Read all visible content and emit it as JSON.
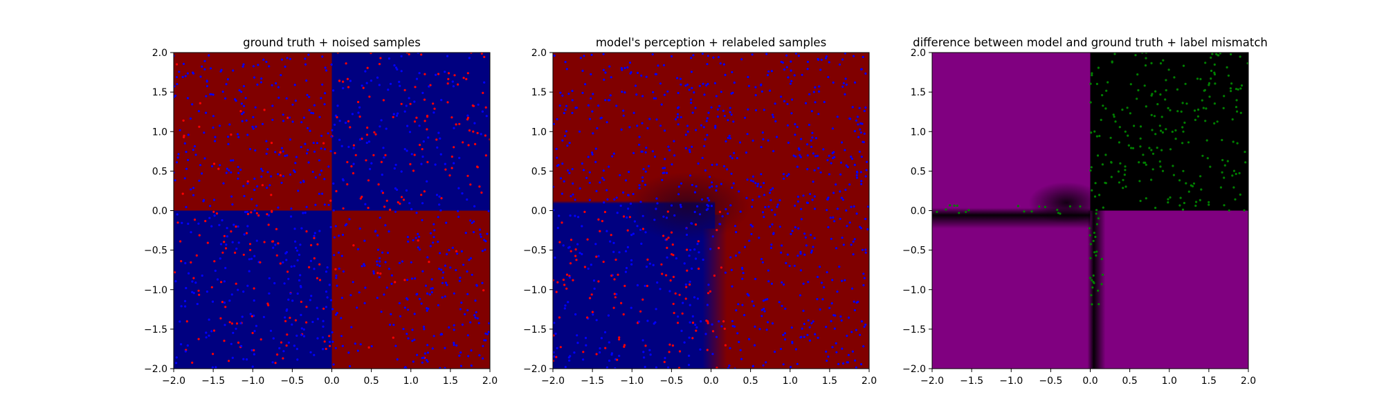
{
  "chart_data": [
    {
      "type": "heatmap",
      "title": "ground truth + noised samples",
      "xlim": [
        -2.0,
        2.0
      ],
      "ylim": [
        -2.0,
        2.0
      ],
      "xticks": [
        "−2.0",
        "−1.5",
        "−1.0",
        "−0.5",
        "0.0",
        "0.5",
        "1.0",
        "1.5",
        "2.0"
      ],
      "yticks": [
        "−2.0",
        "−1.5",
        "−1.0",
        "−0.5",
        "0.0",
        "0.5",
        "1.0",
        "1.5",
        "2.0"
      ],
      "grid": false,
      "colors": {
        "class_a": "#800000",
        "class_b": "#000080"
      },
      "regions": [
        {
          "quadrant": "x<0,y>0",
          "value": "class_a"
        },
        {
          "quadrant": "x>0,y>0",
          "value": "class_b"
        },
        {
          "quadrant": "x<0,y<0",
          "value": "class_b"
        },
        {
          "quadrant": "x>0,y<0",
          "value": "class_a"
        }
      ],
      "scatter": {
        "marker_colors": [
          "#ff0000",
          "#0000ff"
        ],
        "description_of_distribution": "approx. 1000 uniformly spread samples in [-2,2]^2, colored by noised label; red denser in lower-left and upper-right"
      }
    },
    {
      "type": "heatmap",
      "title": "model's perception + relabeled samples",
      "xlim": [
        -2.0,
        2.0
      ],
      "ylim": [
        -2.0,
        2.0
      ],
      "xticks": [
        "−2.0",
        "−1.5",
        "−1.0",
        "−0.5",
        "0.0",
        "0.5",
        "1.0",
        "1.5",
        "2.0"
      ],
      "yticks": [
        "−2.0",
        "−1.5",
        "−1.0",
        "−0.5",
        "0.0",
        "0.5",
        "1.0",
        "1.5",
        "2.0"
      ],
      "grid": false,
      "colors": {
        "class_a": "#800000",
        "class_b": "#000080"
      },
      "regions": [
        {
          "region": "x<0.1,y<0",
          "value": "class_b"
        },
        {
          "region": "elsewhere",
          "value": "class_a"
        }
      ],
      "scatter": {
        "marker_colors": [
          "#ff0000",
          "#0000ff"
        ],
        "description_of_distribution": "approx. 1000 samples, mostly blue; red concentrated in x in [-2,0.2], y in [-2,0]"
      }
    },
    {
      "type": "heatmap",
      "title": "difference between model and ground truth + label mismatch",
      "xlim": [
        -2.0,
        2.0
      ],
      "ylim": [
        -2.0,
        2.0
      ],
      "xticks": [
        "−2.0",
        "−1.5",
        "−1.0",
        "−0.5",
        "0.0",
        "0.5",
        "1.0",
        "1.5",
        "2.0"
      ],
      "yticks": [
        "−2.0",
        "−1.5",
        "−1.0",
        "−0.5",
        "0.0",
        "0.5",
        "1.0",
        "1.5",
        "2.0"
      ],
      "grid": false,
      "colors": {
        "mismatch": "#800080",
        "match": "#000000"
      },
      "regions": [
        {
          "quadrant": "x>0,y>0",
          "value": "match"
        },
        {
          "region": "elsewhere",
          "value": "mismatch"
        }
      ],
      "scatter": {
        "marker_colors": [
          "#008000"
        ],
        "description_of_distribution": "green points mostly in upper-right quadrant, a few along the y=0 and x=0 boundaries"
      }
    }
  ]
}
